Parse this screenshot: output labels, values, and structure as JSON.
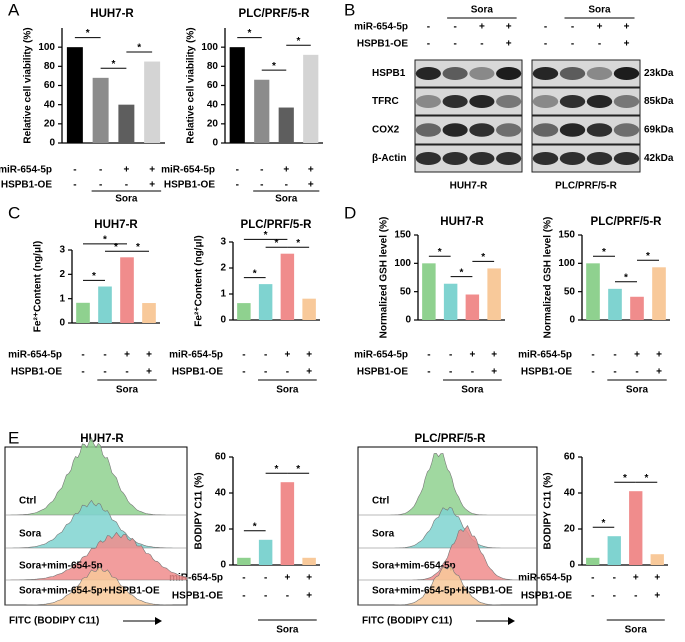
{
  "panel_labels": [
    "A",
    "B",
    "C",
    "D",
    "E"
  ],
  "chart_data": [
    {
      "type": "bar",
      "title": "HUH7-R",
      "y_label": "Relative cell viability (%)",
      "values": [
        100,
        68,
        40,
        85
      ],
      "colors": [
        "#000000",
        "#8c8c8c",
        "#5e5e5e",
        "#d4d4d4"
      ],
      "ylim": [
        0,
        120
      ],
      "yticks": [
        0,
        20,
        40,
        60,
        80,
        100
      ],
      "treatments": [
        {
          "name": "miR-654-5p",
          "signs": [
            "-",
            "-",
            "+",
            "+"
          ]
        },
        {
          "name": "HSPB1-OE",
          "signs": [
            "-",
            "-",
            "-",
            "+"
          ]
        }
      ],
      "group_label": "Sora",
      "significance": [
        {
          "label": "*",
          "from": 0,
          "to": 1
        },
        {
          "label": "*",
          "from": 1,
          "to": 2
        },
        {
          "label": "*",
          "from": 2,
          "to": 3
        }
      ]
    },
    {
      "type": "bar",
      "title": "PLC/PRF/5-R",
      "y_label": "Relative cell viability (%)",
      "values": [
        100,
        66,
        37,
        92
      ],
      "colors": [
        "#000000",
        "#8c8c8c",
        "#5e5e5e",
        "#d4d4d4"
      ],
      "ylim": [
        0,
        120
      ],
      "yticks": [
        0,
        20,
        40,
        60,
        80,
        100
      ],
      "treatments": [
        {
          "name": "miR-654-5p",
          "signs": [
            "-",
            "-",
            "+",
            "+"
          ]
        },
        {
          "name": "HSPB1-OE",
          "signs": [
            "-",
            "-",
            "-",
            "+"
          ]
        }
      ],
      "group_label": "Sora",
      "significance": [
        {
          "label": "*",
          "from": 0,
          "to": 1
        },
        {
          "label": "*",
          "from": 1,
          "to": 2
        },
        {
          "label": "*",
          "from": 2,
          "to": 3
        }
      ]
    },
    {
      "type": "bar",
      "title": "HUH7-R",
      "y_label": "Fe²⁺Content (ng/μl)",
      "values": [
        0.83,
        1.5,
        2.7,
        0.82
      ],
      "colors": [
        "#8fd18f",
        "#7fd3d0",
        "#f08c8c",
        "#f8c99a"
      ],
      "ylim": [
        0,
        3
      ],
      "yticks": [
        0,
        1,
        2,
        3
      ],
      "treatments": [
        {
          "name": "miR-654-5p",
          "signs": [
            "-",
            "-",
            "+",
            "+"
          ]
        },
        {
          "name": "HSPB1-OE",
          "signs": [
            "-",
            "-",
            "-",
            "+"
          ]
        }
      ],
      "group_label": "Sora",
      "significance": [
        {
          "label": "*",
          "from": 0,
          "to": 1
        },
        {
          "label": "*",
          "from": 0,
          "to": 2
        },
        {
          "label": "*",
          "from": 1,
          "to": 2
        },
        {
          "label": "*",
          "from": 2,
          "to": 3
        }
      ]
    },
    {
      "type": "bar",
      "title": "PLC/PRF/5-R",
      "y_label": "Fe²⁺Content (ng/μl)",
      "values": [
        0.65,
        1.38,
        2.55,
        0.82
      ],
      "colors": [
        "#8fd18f",
        "#7fd3d0",
        "#f08c8c",
        "#f8c99a"
      ],
      "ylim": [
        0,
        3
      ],
      "yticks": [
        0,
        1,
        2,
        3
      ],
      "treatments": [
        {
          "name": "miR-654-5p",
          "signs": [
            "-",
            "-",
            "+",
            "+"
          ]
        },
        {
          "name": "HSPB1-OE",
          "signs": [
            "-",
            "-",
            "-",
            "+"
          ]
        }
      ],
      "group_label": "Sora",
      "significance": [
        {
          "label": "*",
          "from": 0,
          "to": 1
        },
        {
          "label": "*",
          "from": 0,
          "to": 2
        },
        {
          "label": "*",
          "from": 1,
          "to": 2
        },
        {
          "label": "*",
          "from": 2,
          "to": 3
        }
      ]
    },
    {
      "type": "bar",
      "title": "HUH7-R",
      "y_label": "Normalized GSH level (%)",
      "values": [
        100,
        64,
        45,
        91
      ],
      "colors": [
        "#8fd18f",
        "#7fd3d0",
        "#f08c8c",
        "#f8c99a"
      ],
      "ylim": [
        0,
        150
      ],
      "yticks": [
        0,
        50,
        100,
        150
      ],
      "treatments": [
        {
          "name": "miR-654-5p",
          "signs": [
            "-",
            "-",
            "+",
            "+"
          ]
        },
        {
          "name": "HSPB1-OE",
          "signs": [
            "-",
            "-",
            "-",
            "+"
          ]
        }
      ],
      "group_label": "Sora",
      "significance": [
        {
          "label": "*",
          "from": 0,
          "to": 1
        },
        {
          "label": "*",
          "from": 1,
          "to": 2
        },
        {
          "label": "*",
          "from": 2,
          "to": 3
        }
      ]
    },
    {
      "type": "bar",
      "title": "PLC/PRF/5-R",
      "y_label": "Normalized GSH level (%)",
      "values": [
        100,
        55,
        41,
        93
      ],
      "colors": [
        "#8fd18f",
        "#7fd3d0",
        "#f08c8c",
        "#f8c99a"
      ],
      "ylim": [
        0,
        150
      ],
      "yticks": [
        0,
        50,
        100,
        150
      ],
      "treatments": [
        {
          "name": "miR-654-5p",
          "signs": [
            "-",
            "-",
            "+",
            "+"
          ]
        },
        {
          "name": "HSPB1-OE",
          "signs": [
            "-",
            "-",
            "-",
            "+"
          ]
        }
      ],
      "group_label": "Sora",
      "significance": [
        {
          "label": "*",
          "from": 0,
          "to": 1
        },
        {
          "label": "*",
          "from": 1,
          "to": 2
        },
        {
          "label": "*",
          "from": 2,
          "to": 3
        }
      ]
    },
    {
      "type": "bar",
      "y_label": "BODIPY  C11 (%)",
      "values": [
        4,
        14,
        46,
        4
      ],
      "colors": [
        "#8fd18f",
        "#7fd3d0",
        "#f08c8c",
        "#f8c99a"
      ],
      "ylim": [
        0,
        60
      ],
      "yticks": [
        0,
        20,
        40,
        60
      ],
      "treatments": [
        {
          "name": "miR-654-5p",
          "signs": [
            "-",
            "-",
            "+",
            "+"
          ]
        },
        {
          "name": "HSPB1-OE",
          "signs": [
            "-",
            "-",
            "-",
            "+"
          ]
        }
      ],
      "group_label": "Sora",
      "significance": [
        {
          "label": "*",
          "from": 0,
          "to": 1
        },
        {
          "label": "*",
          "from": 1,
          "to": 2
        },
        {
          "label": "*",
          "from": 2,
          "to": 3
        }
      ]
    },
    {
      "type": "bar",
      "y_label": "BODIPY  C11 (%)",
      "values": [
        4,
        16,
        41,
        6
      ],
      "colors": [
        "#8fd18f",
        "#7fd3d0",
        "#f08c8c",
        "#f8c99a"
      ],
      "ylim": [
        0,
        60
      ],
      "yticks": [
        0,
        20,
        40,
        60
      ],
      "treatments": [
        {
          "name": "miR-654-5p",
          "signs": [
            "-",
            "-",
            "+",
            "+"
          ]
        },
        {
          "name": "HSPB1-OE",
          "signs": [
            "-",
            "-",
            "-",
            "+"
          ]
        }
      ],
      "group_label": "Sora",
      "significance": [
        {
          "label": "*",
          "from": 0,
          "to": 1
        },
        {
          "label": "*",
          "from": 1,
          "to": 2
        },
        {
          "label": "*",
          "from": 2,
          "to": 3
        }
      ]
    }
  ],
  "western_blot": {
    "treatments": [
      {
        "name": "miR-654-5p",
        "signs": [
          "-",
          "-",
          "+",
          "+"
        ]
      },
      {
        "name": "HSPB1-OE",
        "signs": [
          "-",
          "-",
          "-",
          "+"
        ]
      }
    ],
    "group_label": "Sora",
    "proteins": [
      {
        "name": "HSPB1",
        "size": "23kDa"
      },
      {
        "name": "TFRC",
        "size": "85kDa"
      },
      {
        "name": "COX2",
        "size": "69kDa"
      },
      {
        "name": "β-Actin",
        "size": "42kDa"
      }
    ],
    "cell_lines": [
      "HUH7-R",
      "PLC/PRF/5-R"
    ]
  },
  "flow_cytometry": [
    {
      "title": "HUH7-R",
      "groups": [
        "Ctrl",
        "Sora",
        "Sora+mim-654-5p",
        "Sora+mim-654-5p+HSPB1-OE"
      ],
      "colors": [
        "#8fd18f",
        "#7fd3d0",
        "#f08c8c",
        "#f8c99a"
      ],
      "x_label": "FITC (BODIPY  C11)"
    },
    {
      "title": "PLC/PRF/5-R",
      "groups": [
        "Ctrl",
        "Sora",
        "Sora+mim-654-5p",
        "Sora+mim-654-5p+HSPB1-OE"
      ],
      "colors": [
        "#8fd18f",
        "#7fd3d0",
        "#f08c8c",
        "#f8c99a"
      ],
      "x_label": "FITC (BODIPY  C11)"
    }
  ]
}
